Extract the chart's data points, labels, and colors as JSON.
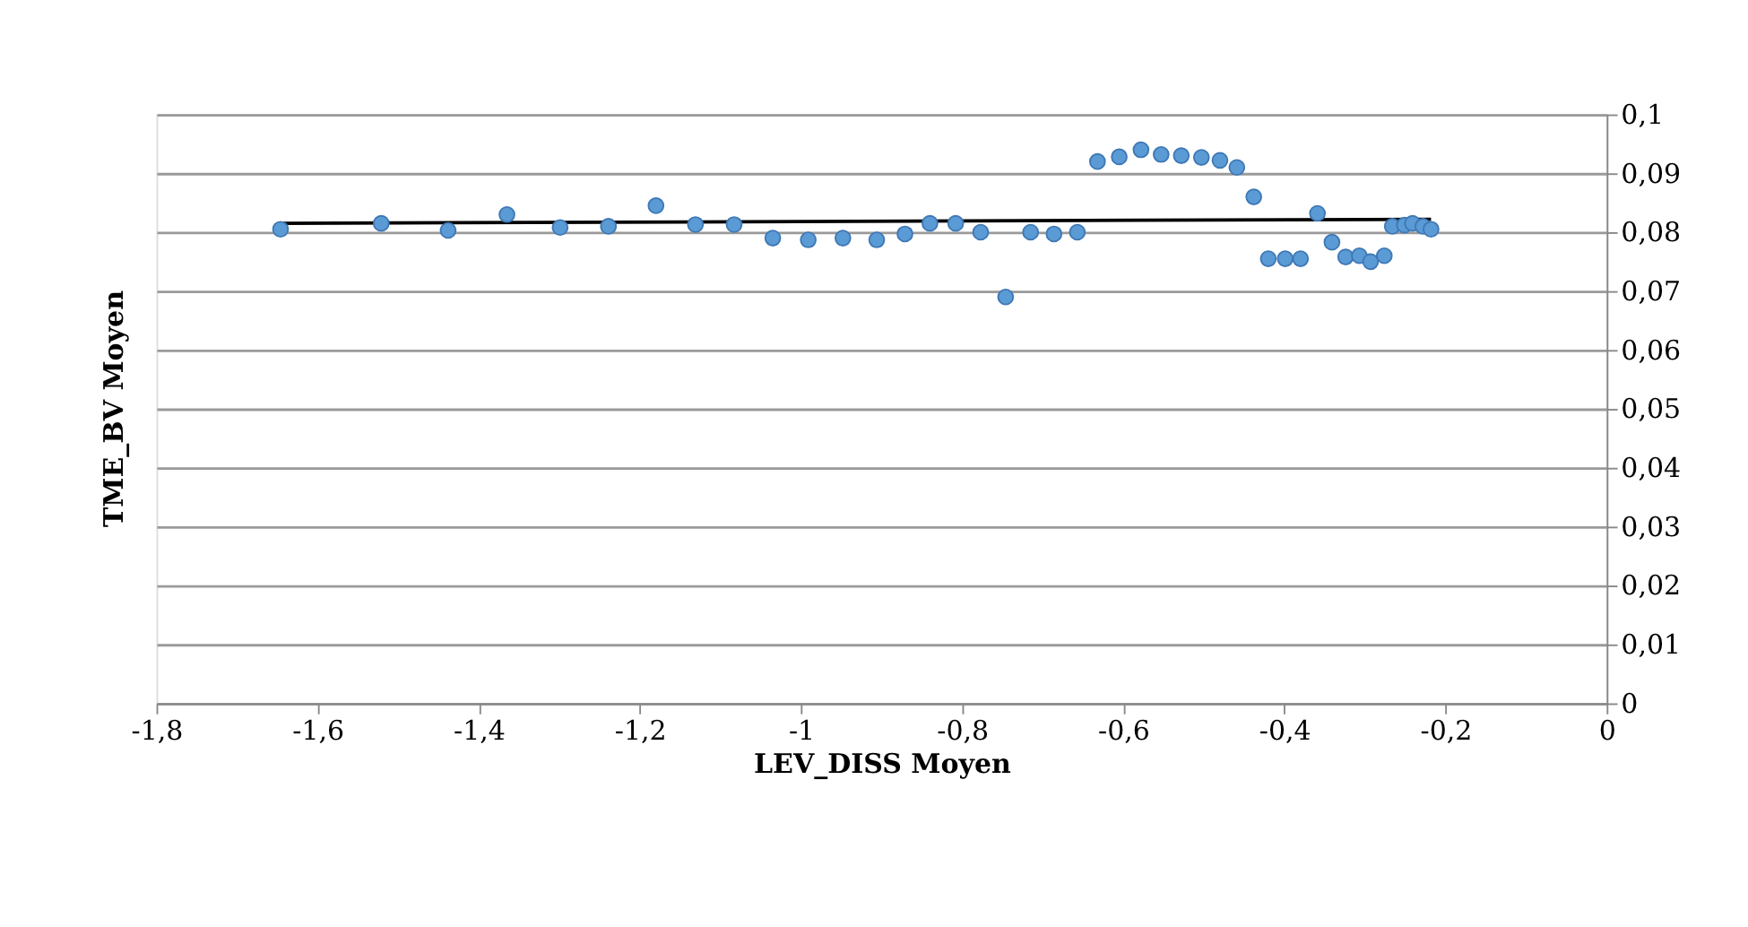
{
  "chart_data": {
    "type": "scatter",
    "xlabel": "LEV_DISS Moyen",
    "ylabel": "TME_BV Moyen",
    "xlim": [
      -1.8,
      0
    ],
    "ylim": [
      0,
      0.1
    ],
    "xticks": [
      {
        "value": -1.8,
        "label": "-1,8"
      },
      {
        "value": -1.6,
        "label": "-1,6"
      },
      {
        "value": -1.4,
        "label": "-1,4"
      },
      {
        "value": -1.2,
        "label": "-1,2"
      },
      -1,
      {
        "value": -0.8,
        "label": "-0,8"
      },
      {
        "value": -0.6,
        "label": "-0,6"
      },
      {
        "value": -0.4,
        "label": "-0,4"
      },
      {
        "value": -0.2,
        "label": "-0,2"
      },
      0
    ],
    "yticks": [
      0,
      {
        "value": 0.01,
        "label": "0,01"
      },
      {
        "value": 0.02,
        "label": "0,02"
      },
      {
        "value": 0.03,
        "label": "0,03"
      },
      {
        "value": 0.04,
        "label": "0,04"
      },
      {
        "value": 0.05,
        "label": "0,05"
      },
      {
        "value": 0.06,
        "label": "0,06"
      },
      {
        "value": 0.07,
        "label": "0,07"
      },
      {
        "value": 0.08,
        "label": "0,08"
      },
      {
        "value": 0.09,
        "label": "0,09"
      },
      {
        "value": 0.1,
        "label": "0,1"
      }
    ],
    "grid": "y",
    "marker": "circle",
    "series": [
      {
        "type": "scatter",
        "color": "#5b9bd5",
        "x": [
          -1.646,
          -1.521,
          -1.438,
          -1.365,
          -1.299,
          -1.239,
          -1.18,
          -1.131,
          -1.083,
          -1.035,
          -0.991,
          -0.948,
          -0.906,
          -0.871,
          -0.84,
          -0.808,
          -0.777,
          -0.746,
          -0.715,
          -0.686,
          -0.657,
          -0.632,
          -0.605,
          -0.578,
          -0.553,
          -0.528,
          -0.503,
          -0.48,
          -0.459,
          -0.438,
          -0.42,
          -0.399,
          -0.38,
          -0.359,
          -0.341,
          -0.324,
          -0.307,
          -0.293,
          -0.276,
          -0.266,
          -0.251,
          -0.241,
          -0.228,
          -0.218
        ],
        "values": [
          0.0805,
          0.0815,
          0.0803,
          0.083,
          0.0808,
          0.081,
          0.0845,
          0.0813,
          0.0813,
          0.079,
          0.0787,
          0.079,
          0.0787,
          0.0797,
          0.0815,
          0.0815,
          0.08,
          0.069,
          0.08,
          0.0797,
          0.08,
          0.092,
          0.0928,
          0.094,
          0.0932,
          0.093,
          0.0927,
          0.0922,
          0.091,
          0.086,
          0.0755,
          0.0755,
          0.0755,
          0.0832,
          0.0783,
          0.0758,
          0.076,
          0.075,
          0.076,
          0.081,
          0.0812,
          0.0815,
          0.081,
          0.0805
        ]
      },
      {
        "type": "line",
        "color": "#000000",
        "marker": "none",
        "x": [
          -1.646,
          -0.218
        ],
        "values": [
          0.0815,
          0.0822
        ]
      }
    ]
  }
}
